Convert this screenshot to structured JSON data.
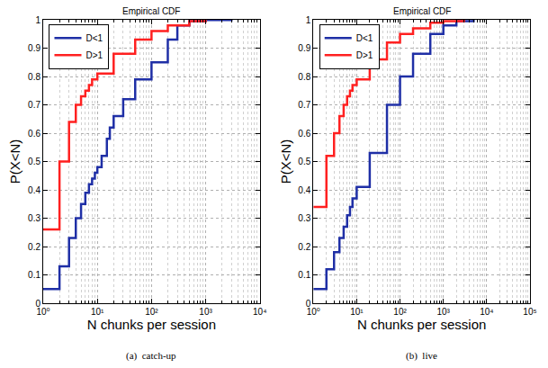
{
  "chart_data": [
    {
      "type": "line",
      "title": "Empirical CDF",
      "x_label": "N chunks per session",
      "y_label": "P(X<N)",
      "caption": "(a)  catch-up",
      "log": "x",
      "grid": true,
      "legend": "upper left",
      "line_style": "step",
      "xlim": [
        1,
        10000
      ],
      "xticks": [
        {
          "value": 1,
          "label": "10⁰"
        },
        {
          "value": 10,
          "label": "10¹"
        },
        {
          "value": 100,
          "label": "10²"
        },
        {
          "value": 1000,
          "label": "10³"
        },
        {
          "value": 10000,
          "label": "10⁴"
        }
      ],
      "ylim": [
        0,
        1
      ],
      "yticks": [
        0,
        0.1,
        0.2,
        0.3,
        0.4,
        0.5,
        0.6,
        0.7,
        0.8,
        0.9,
        1
      ],
      "series": [
        {
          "name": "D<1",
          "color": "#1f2fa6",
          "x": [
            1,
            2,
            3,
            4,
            5,
            6,
            7,
            8,
            9,
            10,
            12,
            15,
            17,
            20,
            30,
            50,
            100,
            200,
            300,
            500,
            1000,
            3000
          ],
          "values": [
            0.05,
            0.13,
            0.23,
            0.3,
            0.35,
            0.39,
            0.42,
            0.44,
            0.46,
            0.48,
            0.52,
            0.58,
            0.62,
            0.66,
            0.72,
            0.79,
            0.85,
            0.93,
            0.98,
            0.995,
            0.999,
            1
          ]
        },
        {
          "name": "D>1",
          "color": "#ff2020",
          "x": [
            1,
            2,
            3,
            4,
            5,
            6,
            7,
            8,
            10,
            20,
            50,
            100,
            200,
            500,
            1000
          ],
          "values": [
            0.26,
            0.5,
            0.64,
            0.7,
            0.73,
            0.75,
            0.77,
            0.79,
            0.81,
            0.88,
            0.93,
            0.96,
            0.98,
            0.995,
            1
          ]
        }
      ]
    },
    {
      "type": "line",
      "title": "Empirical CDF",
      "x_label": "N chunks per session",
      "y_label": "P(X<N)",
      "caption": "(b)  live",
      "log": "x",
      "grid": true,
      "legend": "upper left",
      "line_style": "step",
      "xlim": [
        1,
        100000
      ],
      "xticks": [
        {
          "value": 1,
          "label": "10⁰"
        },
        {
          "value": 10,
          "label": "10¹"
        },
        {
          "value": 100,
          "label": "10²"
        },
        {
          "value": 1000,
          "label": "10³"
        },
        {
          "value": 10000,
          "label": "10⁴"
        },
        {
          "value": 100000,
          "label": "10⁵"
        }
      ],
      "ylim": [
        0,
        1
      ],
      "yticks": [
        0,
        0.1,
        0.2,
        0.3,
        0.4,
        0.5,
        0.6,
        0.7,
        0.8,
        0.9,
        1
      ],
      "series": [
        {
          "name": "D<1",
          "color": "#1f2fa6",
          "x": [
            1,
            2,
            3,
            4,
            5,
            6,
            7,
            8,
            10,
            20,
            50,
            100,
            200,
            500,
            1000,
            2000,
            5000
          ],
          "values": [
            0.05,
            0.12,
            0.18,
            0.23,
            0.27,
            0.31,
            0.34,
            0.37,
            0.41,
            0.53,
            0.7,
            0.8,
            0.88,
            0.95,
            0.98,
            0.995,
            1
          ]
        },
        {
          "name": "D>1",
          "color": "#ff2020",
          "x": [
            1,
            2,
            3,
            4,
            5,
            6,
            7,
            8,
            10,
            20,
            50,
            100,
            200,
            500,
            1000,
            3000
          ],
          "values": [
            0.34,
            0.52,
            0.6,
            0.66,
            0.7,
            0.73,
            0.75,
            0.77,
            0.79,
            0.86,
            0.92,
            0.95,
            0.97,
            0.99,
            0.995,
            1
          ]
        }
      ]
    }
  ]
}
